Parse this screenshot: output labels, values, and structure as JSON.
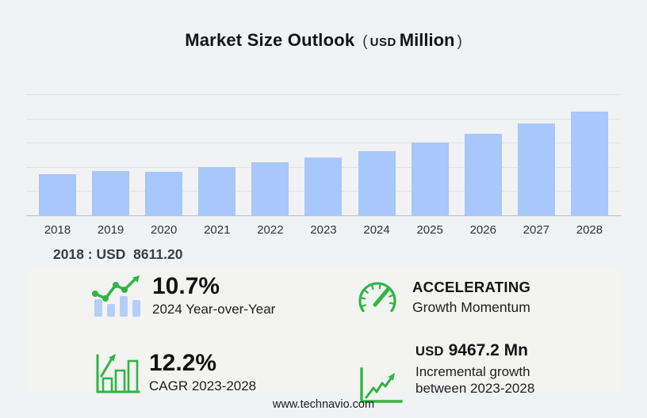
{
  "title": {
    "text": "Market Size Outlook",
    "paren_open": "(",
    "currency": "USD",
    "unit": "Million",
    "paren_close": ")"
  },
  "chart_data": {
    "type": "bar",
    "title": "Market Size Outlook (USD Million)",
    "categories": [
      "2018",
      "2019",
      "2020",
      "2021",
      "2022",
      "2023",
      "2024",
      "2025",
      "2026",
      "2027",
      "2028"
    ],
    "values": [
      8611.2,
      9390,
      9170,
      10100,
      11100,
      12160,
      13460,
      15140,
      16960,
      19160,
      21630
    ],
    "xlabel": "",
    "ylabel": "USD Million",
    "ylim": [
      0,
      25000
    ],
    "gridline_step": 5000,
    "grid": true,
    "legend": false
  },
  "annotation": {
    "text": "2018 : USD  8611.20"
  },
  "stats": [
    {
      "icon": "bar-line-growth-icon",
      "value": "10.7%",
      "label": "2024 Year-over-Year"
    },
    {
      "icon": "speedometer-icon",
      "value": "ACCELERATING",
      "label": "Growth Momentum"
    },
    {
      "icon": "cagr-bar-chart-icon",
      "value": "12.2%",
      "label": "CAGR 2023-2028"
    },
    {
      "icon": "incremental-line-chart-icon",
      "value_prefix": "USD",
      "value": "9467.2 Mn",
      "label": "Incremental growth between 2023-2028"
    }
  ],
  "footer": {
    "url": "www.technavio.com"
  },
  "colors": {
    "background": "#f1f2f4",
    "panel": "#f3f3f2",
    "bar": "#a8c7fa",
    "gridline": "#e0e0e3",
    "axis": "#bfbfc2",
    "icon_green": "#30b543",
    "icon_bar_blue": "#b3cef9"
  }
}
